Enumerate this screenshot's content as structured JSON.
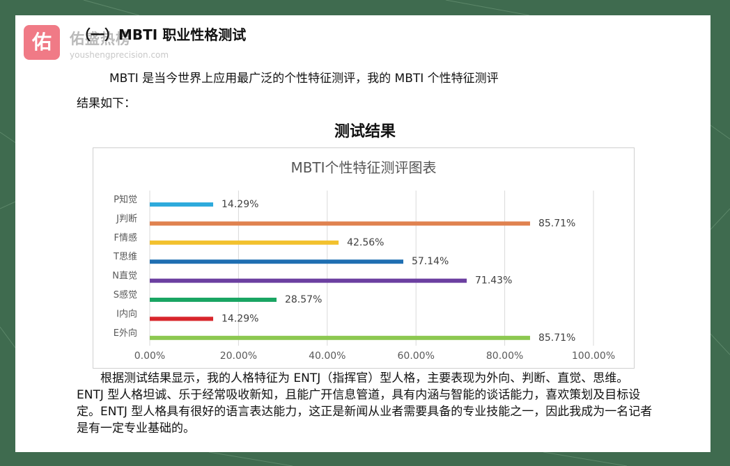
{
  "watermark": {
    "logo_char": "佑",
    "name": "佑盛热榜",
    "url": "youshengprecision.com"
  },
  "document": {
    "heading": "（一）MBTI 职业性格测试",
    "intro_line1": "MBTI 是当今世界上应用最广泛的个性特征测评，我的 MBTI 个性特征测评",
    "intro_line2": "结果如下：",
    "section_title": "测试结果",
    "conclusion": "根据测试结果显示，我的人格特征为 ENTJ（指挥官）型人格，主要表现为外向、判断、直觉、思维。ENTJ 型人格坦诚、乐于经常吸收新知，且能广开信息管道，具有内涵与智能的谈话能力，喜欢策划及目标设定。ENTJ 型人格具有很好的语言表达能力，这正是新闻从业者需要具备的专业技能之一，因此我成为一名记者是有一定专业基础的。"
  },
  "chart_data": {
    "type": "bar",
    "orientation": "horizontal",
    "title": "MBTI个性特征测评图表",
    "categories": [
      "P知觉",
      "J判断",
      "F情感",
      "T思维",
      "N直觉",
      "S感觉",
      "I内向",
      "E外向"
    ],
    "values": [
      14.29,
      85.71,
      42.56,
      57.14,
      71.43,
      28.57,
      14.29,
      85.71
    ],
    "value_labels": [
      "14.29%",
      "85.71%",
      "42.56%",
      "57.14%",
      "71.43%",
      "28.57%",
      "14.29%",
      "85.71%"
    ],
    "colors": [
      "#2eaadc",
      "#e0824f",
      "#f2c12e",
      "#1f6fb2",
      "#6b3fa0",
      "#1aa563",
      "#d8262c",
      "#8cc850"
    ],
    "xlim": [
      0,
      100
    ],
    "x_ticks": [
      "0.00%",
      "20.00%",
      "40.00%",
      "60.00%",
      "80.00%",
      "100.00%"
    ],
    "grid": true,
    "legend": "none"
  }
}
